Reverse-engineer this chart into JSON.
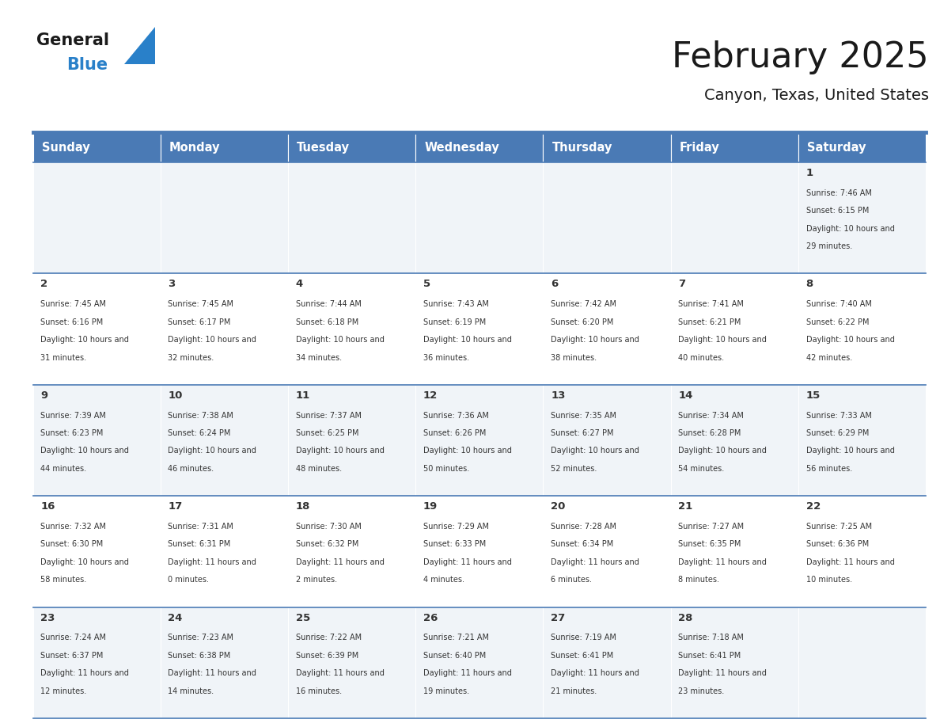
{
  "title": "February 2025",
  "subtitle": "Canyon, Texas, United States",
  "header_bg": "#4a7ab5",
  "header_text_color": "#ffffff",
  "day_names": [
    "Sunday",
    "Monday",
    "Tuesday",
    "Wednesday",
    "Thursday",
    "Friday",
    "Saturday"
  ],
  "row_bg_light": "#f0f4f8",
  "row_bg_white": "#ffffff",
  "cell_text_color": "#333333",
  "day_num_color": "#333333",
  "border_color": "#4a7ab5",
  "logo_general_color": "#1a1a1a",
  "logo_blue_color": "#2980c9",
  "title_color": "#1a1a1a",
  "calendar": [
    [
      null,
      null,
      null,
      null,
      null,
      null,
      {
        "day": 1,
        "sunrise": "7:46 AM",
        "sunset": "6:15 PM",
        "daylight": "10 hours and 29 minutes."
      }
    ],
    [
      {
        "day": 2,
        "sunrise": "7:45 AM",
        "sunset": "6:16 PM",
        "daylight": "10 hours and 31 minutes."
      },
      {
        "day": 3,
        "sunrise": "7:45 AM",
        "sunset": "6:17 PM",
        "daylight": "10 hours and 32 minutes."
      },
      {
        "day": 4,
        "sunrise": "7:44 AM",
        "sunset": "6:18 PM",
        "daylight": "10 hours and 34 minutes."
      },
      {
        "day": 5,
        "sunrise": "7:43 AM",
        "sunset": "6:19 PM",
        "daylight": "10 hours and 36 minutes."
      },
      {
        "day": 6,
        "sunrise": "7:42 AM",
        "sunset": "6:20 PM",
        "daylight": "10 hours and 38 minutes."
      },
      {
        "day": 7,
        "sunrise": "7:41 AM",
        "sunset": "6:21 PM",
        "daylight": "10 hours and 40 minutes."
      },
      {
        "day": 8,
        "sunrise": "7:40 AM",
        "sunset": "6:22 PM",
        "daylight": "10 hours and 42 minutes."
      }
    ],
    [
      {
        "day": 9,
        "sunrise": "7:39 AM",
        "sunset": "6:23 PM",
        "daylight": "10 hours and 44 minutes."
      },
      {
        "day": 10,
        "sunrise": "7:38 AM",
        "sunset": "6:24 PM",
        "daylight": "10 hours and 46 minutes."
      },
      {
        "day": 11,
        "sunrise": "7:37 AM",
        "sunset": "6:25 PM",
        "daylight": "10 hours and 48 minutes."
      },
      {
        "day": 12,
        "sunrise": "7:36 AM",
        "sunset": "6:26 PM",
        "daylight": "10 hours and 50 minutes."
      },
      {
        "day": 13,
        "sunrise": "7:35 AM",
        "sunset": "6:27 PM",
        "daylight": "10 hours and 52 minutes."
      },
      {
        "day": 14,
        "sunrise": "7:34 AM",
        "sunset": "6:28 PM",
        "daylight": "10 hours and 54 minutes."
      },
      {
        "day": 15,
        "sunrise": "7:33 AM",
        "sunset": "6:29 PM",
        "daylight": "10 hours and 56 minutes."
      }
    ],
    [
      {
        "day": 16,
        "sunrise": "7:32 AM",
        "sunset": "6:30 PM",
        "daylight": "10 hours and 58 minutes."
      },
      {
        "day": 17,
        "sunrise": "7:31 AM",
        "sunset": "6:31 PM",
        "daylight": "11 hours and 0 minutes."
      },
      {
        "day": 18,
        "sunrise": "7:30 AM",
        "sunset": "6:32 PM",
        "daylight": "11 hours and 2 minutes."
      },
      {
        "day": 19,
        "sunrise": "7:29 AM",
        "sunset": "6:33 PM",
        "daylight": "11 hours and 4 minutes."
      },
      {
        "day": 20,
        "sunrise": "7:28 AM",
        "sunset": "6:34 PM",
        "daylight": "11 hours and 6 minutes."
      },
      {
        "day": 21,
        "sunrise": "7:27 AM",
        "sunset": "6:35 PM",
        "daylight": "11 hours and 8 minutes."
      },
      {
        "day": 22,
        "sunrise": "7:25 AM",
        "sunset": "6:36 PM",
        "daylight": "11 hours and 10 minutes."
      }
    ],
    [
      {
        "day": 23,
        "sunrise": "7:24 AM",
        "sunset": "6:37 PM",
        "daylight": "11 hours and 12 minutes."
      },
      {
        "day": 24,
        "sunrise": "7:23 AM",
        "sunset": "6:38 PM",
        "daylight": "11 hours and 14 minutes."
      },
      {
        "day": 25,
        "sunrise": "7:22 AM",
        "sunset": "6:39 PM",
        "daylight": "11 hours and 16 minutes."
      },
      {
        "day": 26,
        "sunrise": "7:21 AM",
        "sunset": "6:40 PM",
        "daylight": "11 hours and 19 minutes."
      },
      {
        "day": 27,
        "sunrise": "7:19 AM",
        "sunset": "6:41 PM",
        "daylight": "11 hours and 21 minutes."
      },
      {
        "day": 28,
        "sunrise": "7:18 AM",
        "sunset": "6:41 PM",
        "daylight": "11 hours and 23 minutes."
      },
      null
    ]
  ]
}
